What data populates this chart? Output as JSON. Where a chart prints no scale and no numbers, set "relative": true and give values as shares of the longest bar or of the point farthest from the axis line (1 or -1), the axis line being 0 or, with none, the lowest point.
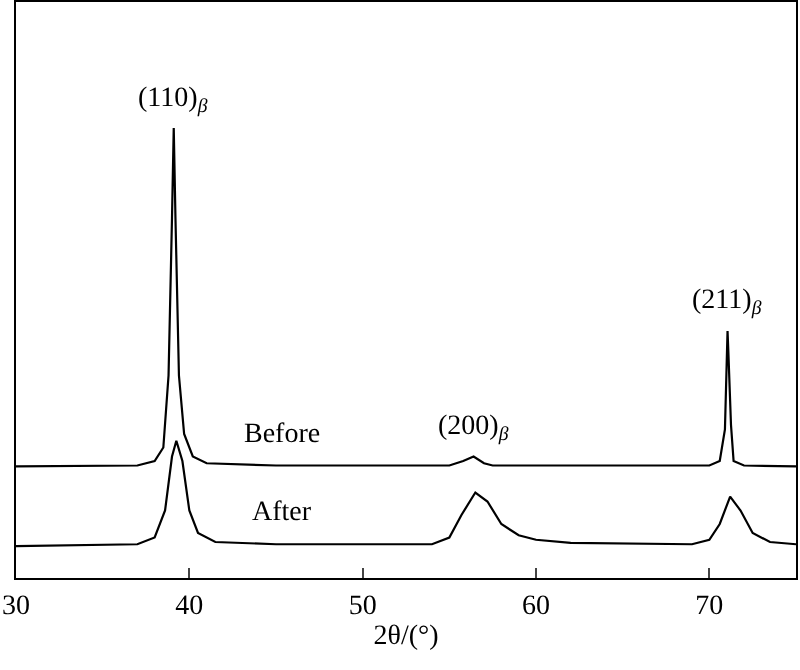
{
  "chart_data": {
    "type": "line",
    "relative": true,
    "xlabel": "2θ/(°)",
    "xlim": [
      30,
      75
    ],
    "xticks": [
      30,
      40,
      50,
      60,
      70
    ],
    "legend": false,
    "marker": "none",
    "line_style": "solid",
    "series": [
      {
        "name": "Before",
        "color": "#000000",
        "x": [
          30,
          37,
          38,
          38.5,
          38.8,
          39.0,
          39.1,
          39.2,
          39.4,
          39.7,
          40.2,
          41,
          45,
          55,
          55.8,
          56.4,
          57,
          57.5,
          70,
          70.6,
          70.9,
          71.05,
          71.1,
          71.25,
          71.4,
          72,
          75
        ],
        "values": [
          0.248,
          0.25,
          0.26,
          0.29,
          0.45,
          0.8,
          1.0,
          0.8,
          0.45,
          0.32,
          0.27,
          0.255,
          0.25,
          0.25,
          0.26,
          0.27,
          0.255,
          0.25,
          0.25,
          0.26,
          0.33,
          0.549,
          0.5,
          0.34,
          0.26,
          0.25,
          0.248
        ]
      },
      {
        "name": "After",
        "color": "#000000",
        "x": [
          30,
          37,
          38,
          38.6,
          39,
          39.25,
          39.6,
          40,
          40.5,
          41.5,
          45,
          54,
          55,
          55.7,
          56.5,
          57.2,
          58,
          59,
          60,
          62,
          69,
          70,
          70.6,
          71.2,
          71.8,
          72.5,
          73.5,
          75
        ],
        "values": [
          0.071,
          0.075,
          0.09,
          0.15,
          0.27,
          0.305,
          0.26,
          0.15,
          0.1,
          0.08,
          0.075,
          0.075,
          0.09,
          0.14,
          0.19,
          0.17,
          0.12,
          0.095,
          0.085,
          0.078,
          0.075,
          0.085,
          0.12,
          0.181,
          0.15,
          0.1,
          0.08,
          0.075
        ]
      }
    ],
    "annotations": [
      {
        "text": "(110)$_{β}$",
        "x": 39.1,
        "y": 1.0
      },
      {
        "text": "(200)$_{β}$",
        "x": 56.4,
        "y": 0.27
      },
      {
        "text": "(211)$_{β}$",
        "x": 71.05,
        "y": 0.549
      }
    ]
  }
}
